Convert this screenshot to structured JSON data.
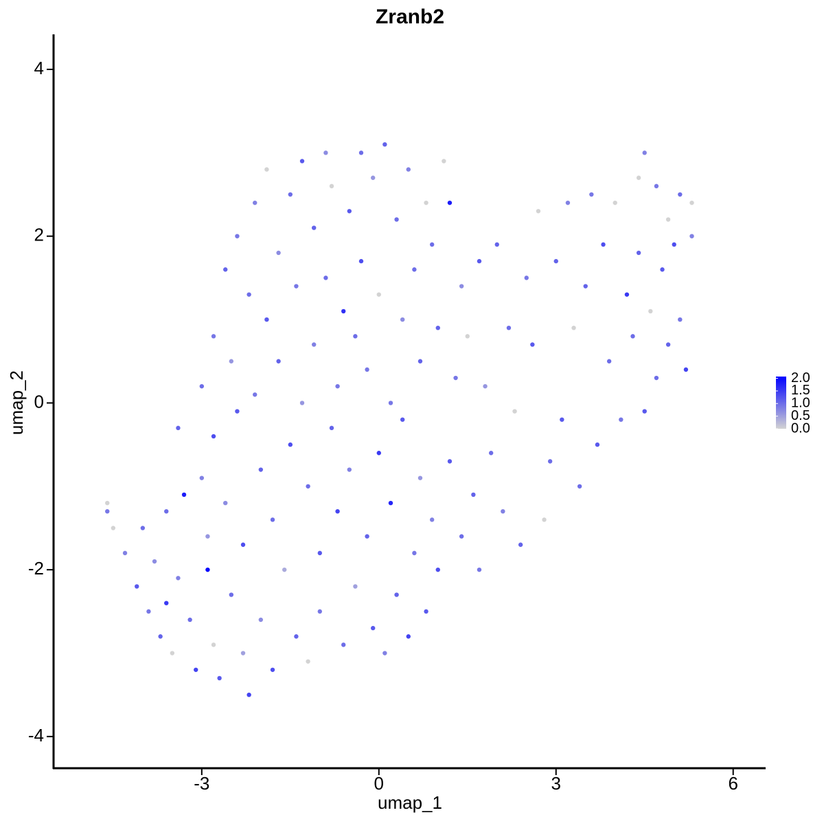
{
  "chart_data": {
    "type": "scatter",
    "title": "Zranb2",
    "x_label": "umap_1",
    "y_label": "umap_2",
    "xlim": [
      -5.51,
      6.55
    ],
    "ylim": [
      -4.38,
      4.42
    ],
    "xticks": [
      -3,
      0,
      3,
      6
    ],
    "yticks": [
      -4,
      -2,
      0,
      2,
      4
    ],
    "low_color": "#d3d3d3",
    "high_color": "#0000ff",
    "colorlim": [
      0,
      2.07
    ],
    "colorticks": [
      {
        "value": 2,
        "label": "2.0"
      },
      {
        "value": 1.5,
        "label": "1.5"
      },
      {
        "value": 1,
        "label": "1.0"
      },
      {
        "value": 0.5,
        "label": "0.5"
      },
      {
        "value": 0,
        "label": "0.0"
      }
    ],
    "x": [
      -4.6,
      -4.6,
      -4.5,
      -4.3,
      -4.1,
      -4.0,
      -3.9,
      -3.8,
      -3.7,
      -3.6,
      -3.6,
      -3.5,
      -3.4,
      -3.4,
      -3.3,
      -3.2,
      -3.1,
      -3.0,
      -3.0,
      -2.9,
      -2.9,
      -2.8,
      -2.8,
      -2.8,
      -2.7,
      -2.6,
      -2.6,
      -2.5,
      -2.5,
      -2.4,
      -2.4,
      -2.3,
      -2.3,
      -2.2,
      -2.2,
      -2.1,
      -2.1,
      -2.0,
      -2.0,
      -1.9,
      -1.9,
      -1.8,
      -1.8,
      -1.7,
      -1.7,
      -1.6,
      -1.5,
      -1.5,
      -1.4,
      -1.4,
      -1.3,
      -1.3,
      -1.2,
      -1.2,
      -1.1,
      -1.1,
      -1.0,
      -1.0,
      -0.9,
      -0.9,
      -0.8,
      -0.8,
      -0.7,
      -0.7,
      -0.6,
      -0.6,
      -0.5,
      -0.5,
      -0.4,
      -0.4,
      -0.3,
      -0.3,
      -0.2,
      -0.2,
      -0.1,
      -0.1,
      0.0,
      0.0,
      0.1,
      0.1,
      0.2,
      0.2,
      0.3,
      0.3,
      0.4,
      0.4,
      0.5,
      0.5,
      0.6,
      0.6,
      0.7,
      0.7,
      0.8,
      0.8,
      0.9,
      0.9,
      1.0,
      1.0,
      1.1,
      1.2,
      1.2,
      1.3,
      1.4,
      1.4,
      1.5,
      1.6,
      1.7,
      1.7,
      1.8,
      1.9,
      2.0,
      2.1,
      2.2,
      2.3,
      2.4,
      2.5,
      2.6,
      2.7,
      2.8,
      2.9,
      3.0,
      3.1,
      3.2,
      3.3,
      3.4,
      3.5,
      3.6,
      3.7,
      3.8,
      3.9,
      4.0,
      4.1,
      4.2,
      4.3,
      4.4,
      4.4,
      4.5,
      4.5,
      4.6,
      4.7,
      4.7,
      4.8,
      4.9,
      4.9,
      5.0,
      5.1,
      5.1,
      5.2,
      5.3,
      5.3
    ],
    "y": [
      -1.2,
      -1.3,
      -1.5,
      -1.8,
      -2.2,
      -1.5,
      -2.5,
      -1.9,
      -2.8,
      -1.3,
      -2.4,
      -3.0,
      -0.3,
      -2.1,
      -1.1,
      -2.6,
      -3.2,
      -0.9,
      0.2,
      -1.6,
      -2.0,
      -0.4,
      -2.9,
      0.8,
      -3.3,
      1.6,
      -1.2,
      -2.3,
      0.5,
      2.0,
      -0.1,
      -3.0,
      -1.7,
      1.3,
      -3.5,
      2.4,
      0.1,
      -0.8,
      -2.6,
      2.8,
      1.0,
      -1.4,
      -3.2,
      1.8,
      0.5,
      -2.0,
      2.5,
      -0.5,
      1.4,
      -2.8,
      2.9,
      0.0,
      -1.0,
      -3.1,
      2.1,
      0.7,
      -1.8,
      -2.5,
      3.0,
      1.5,
      -0.3,
      2.6,
      -1.3,
      0.2,
      1.1,
      -2.9,
      2.3,
      -0.8,
      0.8,
      -2.2,
      3.0,
      1.7,
      -1.6,
      0.4,
      2.7,
      -2.7,
      -0.6,
      1.3,
      3.1,
      -3.0,
      0.0,
      -1.2,
      2.2,
      -2.3,
      1.0,
      -0.2,
      2.8,
      -2.8,
      1.6,
      -1.8,
      0.5,
      -0.9,
      2.4,
      -2.5,
      1.9,
      -1.4,
      0.9,
      -2.0,
      2.9,
      2.4,
      -0.7,
      0.3,
      -1.6,
      1.4,
      0.8,
      -1.1,
      1.7,
      -2.0,
      0.2,
      -0.6,
      1.9,
      -1.3,
      0.9,
      -0.1,
      -1.7,
      1.5,
      0.7,
      2.3,
      -1.4,
      -0.7,
      1.7,
      -0.2,
      2.4,
      0.9,
      -1.0,
      1.4,
      2.5,
      -0.5,
      1.9,
      0.5,
      2.4,
      -0.2,
      1.3,
      0.8,
      2.7,
      1.8,
      3.0,
      -0.1,
      1.1,
      2.6,
      0.3,
      1.6,
      2.2,
      0.7,
      1.9,
      1.0,
      2.5,
      0.4,
      2.0,
      2.4
    ],
    "values": [
      0,
      0.9,
      0,
      0.8,
      1.2,
      1.0,
      0.9,
      0.7,
      1.1,
      1.0,
      1.5,
      0,
      1.1,
      0.8,
      1.8,
      1.0,
      1.4,
      0.8,
      1.0,
      0.6,
      2.0,
      1.3,
      0,
      0.9,
      1.2,
      1.1,
      0.7,
      1.0,
      0.6,
      0.9,
      1.2,
      0.5,
      1.3,
      1.0,
      1.4,
      0.8,
      0.9,
      1.1,
      0.7,
      0,
      1.2,
      1.0,
      1.3,
      0.7,
      1.1,
      0.4,
      1.0,
      1.3,
      0.9,
      1.1,
      1.2,
      0.6,
      1.0,
      0,
      1.1,
      0.8,
      1.2,
      0.9,
      0.7,
      1.0,
      1.1,
      0,
      1.4,
      0.9,
      1.6,
      1.0,
      1.2,
      0.8,
      1.0,
      0.5,
      1.0,
      1.3,
      1.1,
      0.9,
      0.6,
      1.2,
      1.5,
      0,
      1.1,
      0.8,
      0.9,
      1.7,
      1.0,
      1.1,
      0.7,
      1.2,
      0.8,
      1.4,
      1.0,
      0.9,
      1.1,
      0.6,
      0,
      1.2,
      1.0,
      0.8,
      1.1,
      1.3,
      0,
      1.8,
      1.2,
      0.9,
      1.0,
      0.7,
      0,
      1.1,
      1.2,
      0.9,
      0.6,
      1.0,
      1.1,
      0.8,
      1.0,
      0,
      1.1,
      0.9,
      1.2,
      0,
      0,
      1.0,
      1.1,
      1.2,
      0.8,
      0,
      1.0,
      1.1,
      0.9,
      1.2,
      1.3,
      1.0,
      0,
      0.9,
      1.5,
      1.0,
      0,
      1.1,
      0.8,
      1.2,
      0,
      0.9,
      1.0,
      1.2,
      0,
      1.1,
      1.3,
      0.9,
      1.0,
      1.4,
      0.8,
      0
    ]
  }
}
